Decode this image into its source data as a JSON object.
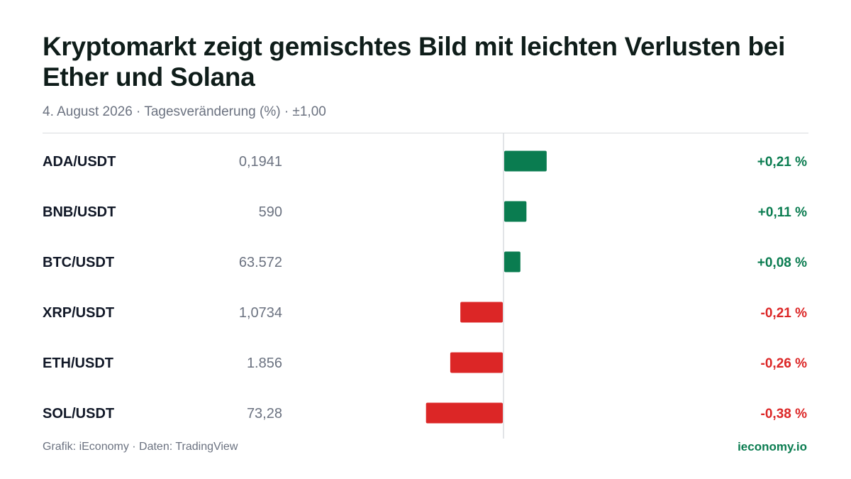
{
  "header": {
    "title": "Kryptomarkt zeigt gemischtes Bild mit leichten Verlusten bei Ether und Solana",
    "subtitle": "4. August 2026 · Tagesveränderung (%) · ±1,00"
  },
  "footer": {
    "source": "Grafik: iEconomy · Daten: TradingView",
    "brand": "ieconomy.io"
  },
  "colors": {
    "positive": "#0a7c50",
    "negative": "#dc2626",
    "axis": "#d9dcdf"
  },
  "chart_data": {
    "type": "bar",
    "orientation": "horizontal",
    "title": "Kryptomarkt zeigt gemischtes Bild mit leichten Verlusten bei Ether und Solana",
    "subtitle": "4. August 2026 · Tagesveränderung (%) · ±1,00",
    "xlim": [
      -1.0,
      1.0
    ],
    "grid": false,
    "categories": [
      "ADA/USDT",
      "BNB/USDT",
      "BTC/USDT",
      "XRP/USDT",
      "ETH/USDT",
      "SOL/USDT"
    ],
    "prices": [
      "0,1941",
      "590",
      "63.572",
      "1,0734",
      "1.856",
      "73,28"
    ],
    "values": [
      0.21,
      0.11,
      0.08,
      -0.21,
      -0.26,
      -0.38
    ],
    "value_labels": [
      "+0,21 %",
      "+0,11 %",
      "+0,08 %",
      "-0,21 %",
      "-0,26 %",
      "-0,38 %"
    ]
  }
}
